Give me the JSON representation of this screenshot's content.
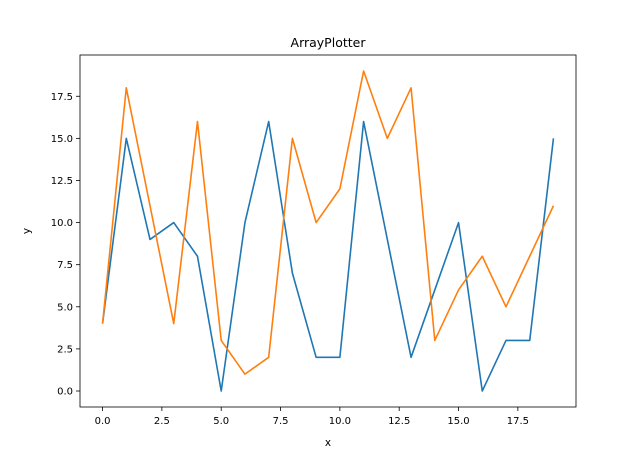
{
  "chart_data": {
    "type": "line",
    "title": "ArrayPlotter",
    "xlabel": "x",
    "ylabel": "y",
    "xlim": [
      -0.95,
      19.95
    ],
    "ylim": [
      -0.95,
      19.95
    ],
    "xticks": [
      0.0,
      2.5,
      5.0,
      7.5,
      10.0,
      12.5,
      15.0,
      17.5
    ],
    "xtick_labels": [
      "0.0",
      "2.5",
      "5.0",
      "7.5",
      "10.0",
      "12.5",
      "15.0",
      "17.5"
    ],
    "yticks": [
      0.0,
      2.5,
      5.0,
      7.5,
      10.0,
      12.5,
      15.0,
      17.5
    ],
    "ytick_labels": [
      "0.0",
      "2.5",
      "5.0",
      "7.5",
      "10.0",
      "12.5",
      "15.0",
      "17.5"
    ],
    "grid": false,
    "x": [
      0,
      1,
      2,
      3,
      4,
      5,
      6,
      7,
      8,
      9,
      10,
      11,
      12,
      13,
      14,
      15,
      16,
      17,
      18,
      19
    ],
    "series": [
      {
        "values": [
          4,
          15,
          9,
          10,
          8,
          0,
          10,
          16,
          7,
          2,
          2,
          16,
          9,
          2,
          6,
          10,
          0,
          3,
          3,
          15
        ],
        "color": "#1f77b4"
      },
      {
        "values": [
          4,
          18,
          11,
          4,
          16,
          3,
          1,
          2,
          15,
          10,
          12,
          19,
          15,
          18,
          3,
          6,
          8,
          5,
          8,
          11
        ],
        "color": "#ff7f0e"
      }
    ]
  }
}
